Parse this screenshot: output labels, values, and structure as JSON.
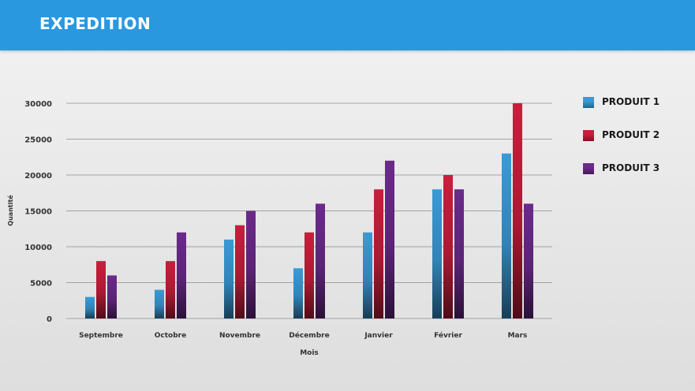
{
  "header": {
    "title": "EXPEDITION"
  },
  "colors": {
    "header_bg": "#2a98df",
    "produit_1": "#3a9ad6",
    "produit_2": "#c81e3c",
    "produit_3": "#6b2a8a"
  },
  "chart_data": {
    "type": "bar",
    "title": "",
    "xlabel": "Mois",
    "ylabel": "Quantité",
    "ylim": [
      0,
      30000
    ],
    "yticks": [
      0,
      5000,
      10000,
      15000,
      20000,
      25000,
      30000
    ],
    "grid": true,
    "legend_position": "right",
    "categories": [
      "Septembre",
      "Octobre",
      "Novembre",
      "Décembre",
      "Janvier",
      "Février",
      "Mars"
    ],
    "series": [
      {
        "name": "PRODUIT 1",
        "color": "#3a9ad6",
        "values": [
          3000,
          4000,
          11000,
          7000,
          12000,
          18000,
          23000
        ]
      },
      {
        "name": "PRODUIT 2",
        "color": "#c81e3c",
        "values": [
          8000,
          8000,
          13000,
          12000,
          18000,
          20000,
          30000
        ]
      },
      {
        "name": "PRODUIT 3",
        "color": "#6b2a8a",
        "values": [
          6000,
          12000,
          15000,
          16000,
          22000,
          18000,
          16000
        ]
      }
    ]
  }
}
